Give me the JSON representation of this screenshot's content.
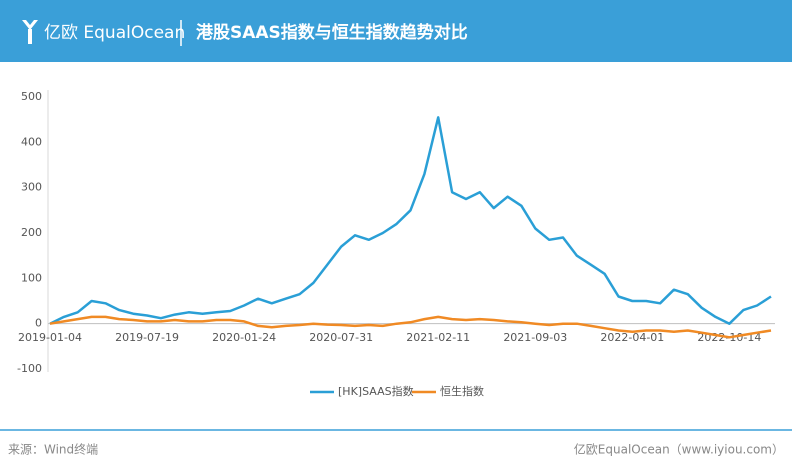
{
  "logo": "亿欧 EqualOcean",
  "source": "来源：Wind终端",
  "credit": "亿欧EqualOcean（www.iyiou.com）",
  "chart_data": {
    "type": "line",
    "title": "港股SAAS指数与恒生指数趋势对比",
    "categories": [
      "2019-01-04",
      null,
      null,
      null,
      null,
      null,
      null,
      "2019-07-19",
      null,
      null,
      null,
      null,
      null,
      null,
      "2020-01-24",
      null,
      null,
      null,
      null,
      null,
      null,
      "2020-07-31",
      null,
      null,
      null,
      null,
      null,
      null,
      "2021-02-11",
      null,
      null,
      null,
      null,
      null,
      null,
      "2021-09-03",
      null,
      null,
      null,
      null,
      null,
      null,
      "2022-04-01",
      null,
      null,
      null,
      null,
      null,
      null,
      "2022-10-14",
      null,
      null,
      null
    ],
    "series": [
      {
        "name": "[HK]SAAS指数",
        "color": "#2a9fd6",
        "values": [
          0,
          15,
          25,
          50,
          45,
          30,
          22,
          18,
          12,
          20,
          25,
          22,
          25,
          28,
          40,
          55,
          45,
          55,
          65,
          90,
          130,
          170,
          195,
          185,
          200,
          220,
          250,
          330,
          455,
          290,
          275,
          290,
          255,
          280,
          260,
          210,
          185,
          190,
          150,
          130,
          110,
          60,
          50,
          50,
          45,
          75,
          65,
          35,
          15,
          0,
          30,
          40,
          60
        ]
      },
      {
        "name": "恒生指数",
        "color": "#f08a24",
        "values": [
          0,
          5,
          10,
          15,
          15,
          10,
          8,
          5,
          5,
          8,
          5,
          5,
          8,
          8,
          5,
          -5,
          -8,
          -5,
          -3,
          0,
          -2,
          -3,
          -5,
          -3,
          -5,
          0,
          3,
          10,
          15,
          10,
          8,
          10,
          8,
          5,
          3,
          0,
          -3,
          0,
          0,
          -5,
          -10,
          -15,
          -18,
          -15,
          -15,
          -18,
          -15,
          -20,
          -25,
          -30,
          -25,
          -20,
          -15
        ]
      }
    ],
    "ylim": [
      -100,
      500
    ],
    "yticks": [
      -100,
      0,
      100,
      200,
      300,
      400,
      500
    ],
    "grid": false
  }
}
